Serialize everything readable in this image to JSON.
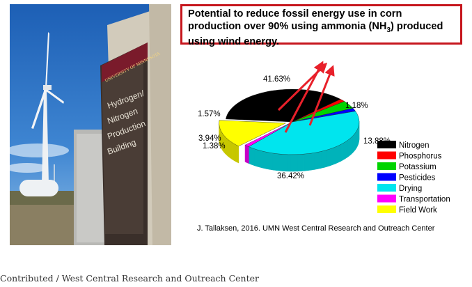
{
  "headline": {
    "line1": "Potential to reduce fossil energy use in corn",
    "line2_pre": "production over 90% using ammonia (NH",
    "line2_sub": "3",
    "line2_post": ") produced",
    "line3": "using wind energy."
  },
  "sign": {
    "university": "UNIVERSITY OF MINNESOTA",
    "lines": [
      "Hydrogen/",
      "Nitrogen",
      "Production",
      "Building"
    ]
  },
  "chart_data": {
    "type": "pie",
    "style": "3d-exploded",
    "categories": [
      "Nitrogen",
      "Phosphorus",
      "Potassium",
      "Pesticides",
      "Drying",
      "Transportation",
      "Field Work"
    ],
    "values": [
      36.42,
      1.38,
      3.94,
      1.57,
      41.63,
      1.18,
      13.88
    ],
    "data_labels": [
      "36.42%",
      "1.38%",
      "3.94%",
      "1.57%",
      "41.63%",
      "1.18%",
      "13.88%"
    ],
    "colors": [
      "#000000",
      "#ff0000",
      "#00d400",
      "#0000ff",
      "#00e5ee",
      "#ff00ff",
      "#ffff00"
    ],
    "legend_position": "right",
    "annotation": "red arrows pointing up from Nitrogen and Drying slices"
  },
  "credit": "J. Tallaksen, 2016.  UMN West Central Research and Outreach Center",
  "caption": "Contributed / West Central Research and Outreach Center"
}
